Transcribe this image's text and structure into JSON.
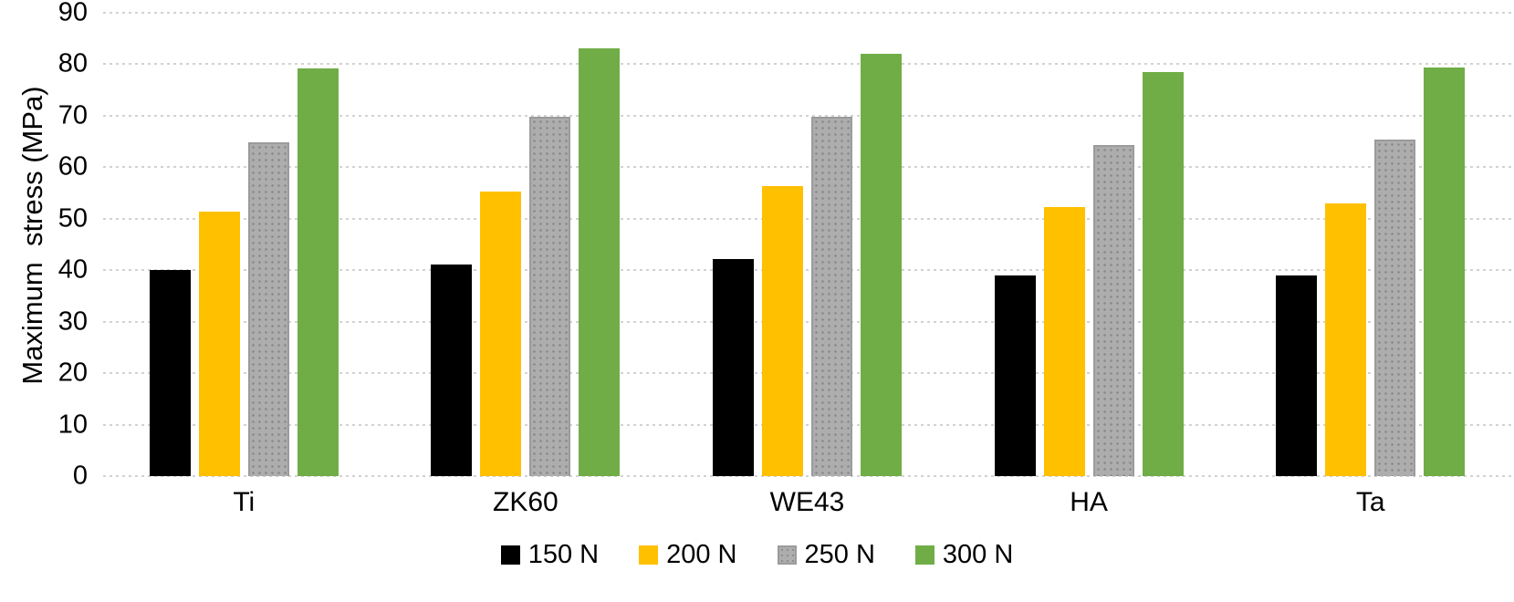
{
  "chart_data": {
    "type": "bar",
    "title": "",
    "xlabel": "",
    "ylabel": "Maximum  stress (MPa)",
    "ylim": [
      0,
      90
    ],
    "yticks": [
      0,
      10,
      20,
      30,
      40,
      50,
      60,
      70,
      80,
      90
    ],
    "grid": true,
    "gridline_color": "#d2d2d2",
    "legend_position": "bottom",
    "categories": [
      "Ti",
      "ZK60",
      "WE43",
      "HA",
      "Ta"
    ],
    "series": [
      {
        "name": "150 N",
        "color": "#000000",
        "pattern": "solid",
        "values": [
          40.1,
          41.1,
          42.1,
          39.0,
          39.0
        ]
      },
      {
        "name": "200 N",
        "color": "#FFC000",
        "pattern": "solid",
        "values": [
          51.4,
          55.2,
          56.3,
          52.3,
          53.0
        ]
      },
      {
        "name": "250 N",
        "color": "#ADADAD",
        "pattern": "dots",
        "values": [
          64.8,
          69.8,
          69.8,
          64.4,
          65.4
        ]
      },
      {
        "name": "300 N",
        "color": "#70AD47",
        "pattern": "solid",
        "values": [
          79.2,
          83.1,
          82.1,
          78.5,
          79.4
        ]
      }
    ]
  }
}
